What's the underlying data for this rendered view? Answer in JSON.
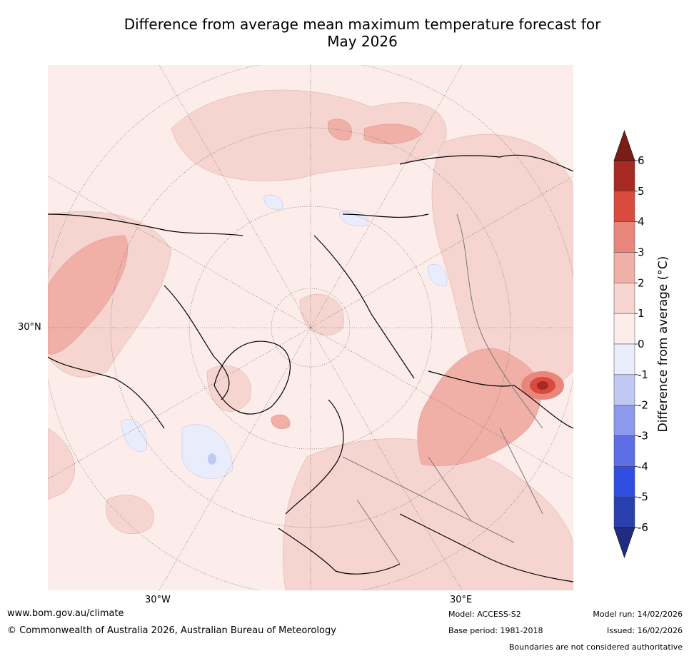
{
  "chart_data": {
    "type": "heatmap",
    "title": "Difference from average mean maximum temperature forecast for",
    "title_line2": "May 2026",
    "map_labels": {
      "lat": "30°N",
      "lon_left": "30°W",
      "lon_right": "30°E"
    },
    "colorbar": {
      "label": "Difference from average ($^\\circ$C)",
      "label_display": "Difference from average (°C)",
      "ticks": [
        6,
        5,
        4,
        3,
        2,
        1,
        0,
        -1,
        -2,
        -3,
        -4,
        -5,
        -6
      ],
      "bins": [
        {
          "min": 5,
          "max": 6,
          "color": "#a72a22"
        },
        {
          "min": 4,
          "max": 5,
          "color": "#d84b3e"
        },
        {
          "min": 3,
          "max": 4,
          "color": "#e9867c"
        },
        {
          "min": 2,
          "max": 3,
          "color": "#f0b0a8"
        },
        {
          "min": 1,
          "max": 2,
          "color": "#f6d5d1"
        },
        {
          "min": 0,
          "max": 1,
          "color": "#fcecea"
        },
        {
          "min": -1,
          "max": 0,
          "color": "#e9ecfb"
        },
        {
          "min": -2,
          "max": -1,
          "color": "#c1c8f3"
        },
        {
          "min": -3,
          "max": -2,
          "color": "#8d99ed"
        },
        {
          "min": -4,
          "max": -3,
          "color": "#5e6ee6"
        },
        {
          "min": -5,
          "max": -4,
          "color": "#304fe2"
        },
        {
          "min": -6,
          "max": -5,
          "color": "#2a3fae"
        }
      ],
      "extend_max_color": "#7a1d16",
      "extend_min_color": "#1f2c80"
    }
  },
  "footer": {
    "url": "www.bom.gov.au/climate",
    "copyright": "© Commonwealth of Australia 2026, Australian Bureau of Meteorology",
    "model": "Model: ACCESS-S2",
    "base_period": "Base period: 1981-2018",
    "model_run": "Model run: 14/02/2026",
    "issued": "Issued: 16/02/2026",
    "disclaimer": "Boundaries are not considered authoritative"
  }
}
